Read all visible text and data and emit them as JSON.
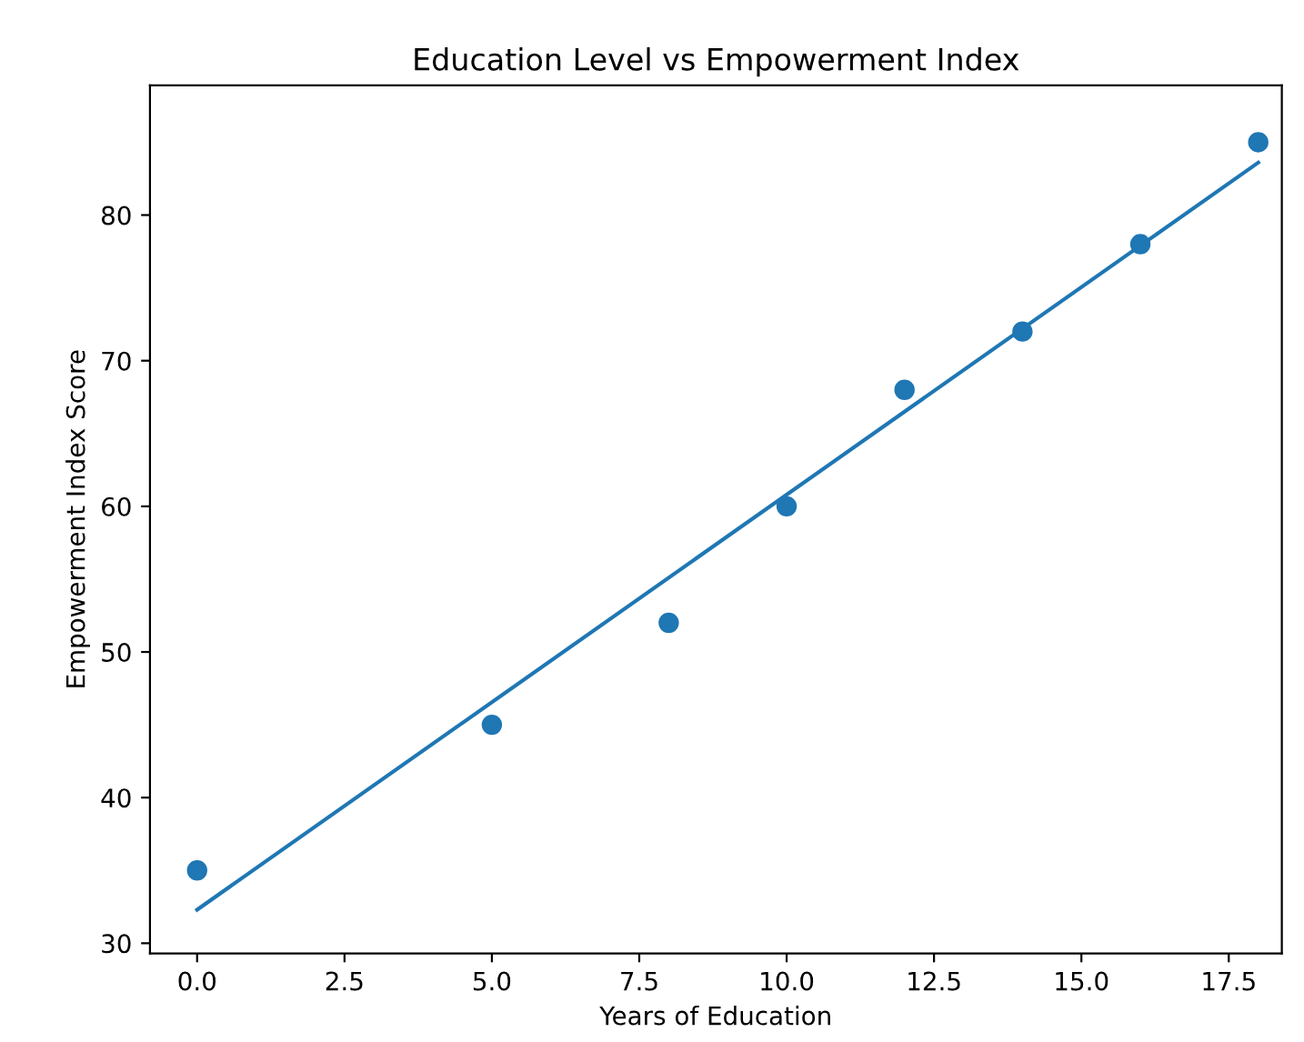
{
  "chart_data": {
    "type": "scatter",
    "title": "Education Level vs Empowerment Index",
    "xlabel": "Years of Education",
    "ylabel": "Empowerment Index Score",
    "series": [
      {
        "color": "#1f77b4",
        "marker": "circle",
        "x": [
          0,
          5,
          8,
          10,
          12,
          14,
          16,
          18
        ],
        "values": [
          35,
          45,
          52,
          60,
          68,
          72,
          78,
          85
        ]
      },
      {
        "type": "line",
        "color": "#1f77b4",
        "marker": "none",
        "x": [
          0,
          18
        ],
        "values": [
          32.3,
          83.6
        ]
      }
    ],
    "xlim": [
      -0.8,
      18.4
    ],
    "ylim": [
      29.3,
      88.9
    ],
    "xticks": [
      {
        "value": 0,
        "label": "0.0"
      },
      {
        "value": 2.5,
        "label": "2.5"
      },
      {
        "value": 5,
        "label": "5.0"
      },
      {
        "value": 7.5,
        "label": "7.5"
      },
      {
        "value": 10,
        "label": "10.0"
      },
      {
        "value": 12.5,
        "label": "12.5"
      },
      {
        "value": 15,
        "label": "15.0"
      },
      {
        "value": 17.5,
        "label": "17.5"
      }
    ],
    "yticks": [
      30,
      40,
      50,
      60,
      70,
      80
    ],
    "grid": false,
    "legend": false
  }
}
